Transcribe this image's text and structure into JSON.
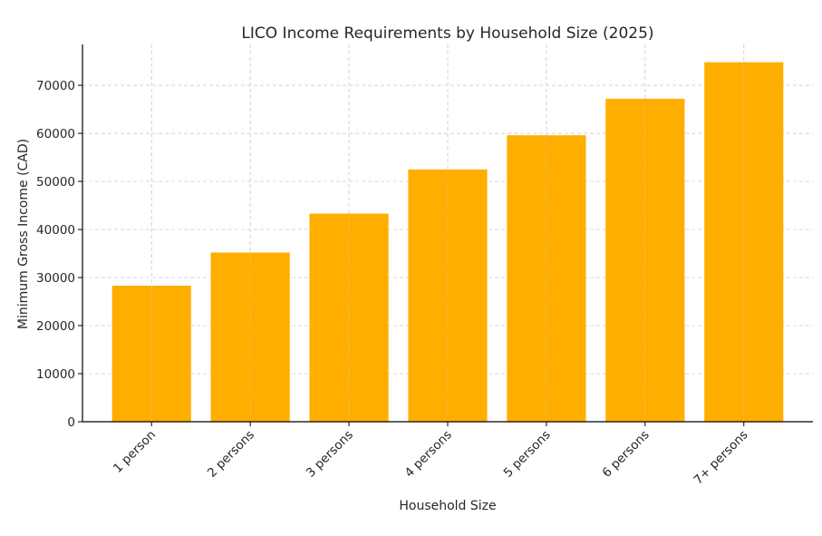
{
  "chart_data": {
    "type": "bar",
    "title": "LICO Income Requirements by Household Size (2025)",
    "xlabel": "Household Size",
    "ylabel": "Minimum Gross Income (CAD)",
    "categories": [
      "1 person",
      "2 persons",
      "3 persons",
      "4 persons",
      "5 persons",
      "6 persons",
      "7+ persons"
    ],
    "values": [
      28300,
      35200,
      43300,
      52500,
      59600,
      67200,
      74800
    ],
    "ylim": [
      0,
      78500
    ],
    "yticks": [
      0,
      10000,
      20000,
      30000,
      40000,
      50000,
      60000,
      70000
    ],
    "bar_color": "#FFAE00",
    "grid": true,
    "legend": "none"
  }
}
